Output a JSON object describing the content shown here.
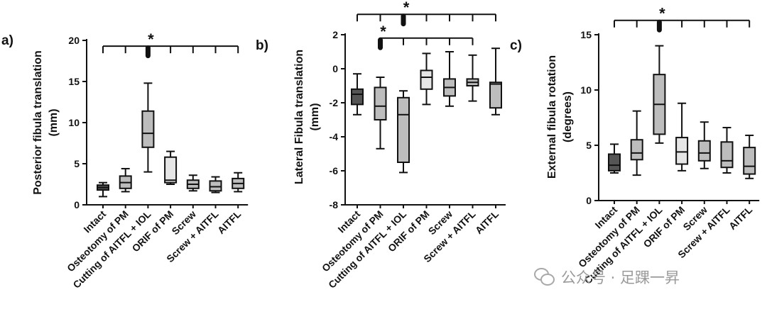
{
  "chart_data": [
    {
      "type": "boxplot",
      "panel_label": "a)",
      "ylabel_line1": "Posterior fibula translation",
      "ylabel_line2": "(mm)",
      "ylim": [
        0,
        20
      ],
      "yticks": [
        0,
        5,
        10,
        15,
        20
      ],
      "categories": [
        "Intact",
        "Osteotomy of PM",
        "Cutting of AITFL + IOL",
        "ORIF of PM",
        "Screw",
        "Screw + AITFL",
        "AITFL"
      ],
      "boxes": [
        {
          "min": 1.0,
          "q1": 1.8,
          "median": 2.1,
          "q3": 2.4,
          "max": 2.7,
          "fill": "#555555"
        },
        {
          "min": 1.6,
          "q1": 2.0,
          "median": 2.7,
          "q3": 3.5,
          "max": 4.4,
          "fill": "#bdbdbd"
        },
        {
          "min": 4.0,
          "q1": 7.0,
          "median": 8.7,
          "q3": 11.4,
          "max": 14.8,
          "fill": "#bdbdbd"
        },
        {
          "min": 2.5,
          "q1": 2.7,
          "median": 3.0,
          "q3": 5.8,
          "max": 6.5,
          "fill": "#e6e6e6"
        },
        {
          "min": 1.7,
          "q1": 2.0,
          "median": 2.5,
          "q3": 3.0,
          "max": 3.6,
          "fill": "#bdbdbd"
        },
        {
          "min": 1.5,
          "q1": 1.7,
          "median": 2.2,
          "q3": 2.9,
          "max": 3.4,
          "fill": "#bdbdbd"
        },
        {
          "min": 1.6,
          "q1": 2.0,
          "median": 2.6,
          "q3": 3.2,
          "max": 3.9,
          "fill": "#bdbdbd"
        }
      ],
      "brackets": [
        {
          "from": 0,
          "to": 6,
          "level": 19.3,
          "star_index": 2,
          "label": "*"
        }
      ]
    },
    {
      "type": "boxplot",
      "panel_label": "b)",
      "ylabel_line1": "Lateral Fibula translation",
      "ylabel_line2": "(mm)",
      "ylim": [
        -8,
        2
      ],
      "yticks": [
        -8,
        -6,
        -4,
        -2,
        0,
        2
      ],
      "categories": [
        "Intact",
        "Osteotomy of PM",
        "Cutting of AITFL + IOL",
        "ORIF of PM",
        "Screw",
        "Screw + AITFL",
        "AITFL"
      ],
      "boxes": [
        {
          "min": -2.7,
          "q1": -2.1,
          "median": -1.5,
          "q3": -1.2,
          "max": -0.3,
          "fill": "#555555"
        },
        {
          "min": -4.7,
          "q1": -3.0,
          "median": -2.2,
          "q3": -1.1,
          "max": -0.5,
          "fill": "#bdbdbd"
        },
        {
          "min": -6.1,
          "q1": -5.5,
          "median": -2.7,
          "q3": -1.7,
          "max": -1.3,
          "fill": "#bdbdbd"
        },
        {
          "min": -2.1,
          "q1": -1.2,
          "median": -0.5,
          "q3": -0.1,
          "max": 0.9,
          "fill": "#e6e6e6"
        },
        {
          "min": -2.2,
          "q1": -1.6,
          "median": -1.1,
          "q3": -0.6,
          "max": 1.0,
          "fill": "#bdbdbd"
        },
        {
          "min": -1.9,
          "q1": -1.0,
          "median": -0.8,
          "q3": -0.6,
          "max": 0.8,
          "fill": "#bdbdbd"
        },
        {
          "min": -2.7,
          "q1": -2.3,
          "median": -0.9,
          "q3": -0.8,
          "max": 1.2,
          "fill": "#bdbdbd"
        }
      ],
      "brackets": [
        {
          "from": 0,
          "to": 6,
          "level": 3.2,
          "star_index": 2,
          "label": "*"
        },
        {
          "from": 1,
          "to": 5,
          "level": 1.8,
          "star_index": 1,
          "label": "*"
        }
      ]
    },
    {
      "type": "boxplot",
      "panel_label": "c)",
      "ylabel_line1": "External fibula rotation",
      "ylabel_line2": "(degrees)",
      "ylim": [
        0,
        15
      ],
      "yticks": [
        0,
        5,
        10,
        15
      ],
      "categories": [
        "Intact",
        "Osteotomy of PM",
        "Cutting of AITFL + IOL",
        "ORIF of PM",
        "Screw",
        "Screw + AITFL",
        "AITFL"
      ],
      "boxes": [
        {
          "min": 2.5,
          "q1": 2.7,
          "median": 3.2,
          "q3": 4.2,
          "max": 5.1,
          "fill": "#555555"
        },
        {
          "min": 2.3,
          "q1": 3.7,
          "median": 4.3,
          "q3": 5.5,
          "max": 8.1,
          "fill": "#bdbdbd"
        },
        {
          "min": 5.2,
          "q1": 6.0,
          "median": 8.7,
          "q3": 11.4,
          "max": 14.0,
          "fill": "#bdbdbd"
        },
        {
          "min": 2.7,
          "q1": 3.3,
          "median": 4.4,
          "q3": 5.7,
          "max": 8.8,
          "fill": "#e6e6e6"
        },
        {
          "min": 2.9,
          "q1": 3.6,
          "median": 4.3,
          "q3": 5.4,
          "max": 7.1,
          "fill": "#bdbdbd"
        },
        {
          "min": 2.5,
          "q1": 3.0,
          "median": 3.6,
          "q3": 5.3,
          "max": 6.6,
          "fill": "#bdbdbd"
        },
        {
          "min": 2.0,
          "q1": 2.4,
          "median": 3.1,
          "q3": 4.8,
          "max": 5.9,
          "fill": "#bdbdbd"
        }
      ],
      "brackets": [
        {
          "from": 0,
          "to": 6,
          "level": 16.3,
          "star_index": 2,
          "label": "*"
        }
      ]
    }
  ],
  "watermark": "公众号 · 足踝一昇"
}
